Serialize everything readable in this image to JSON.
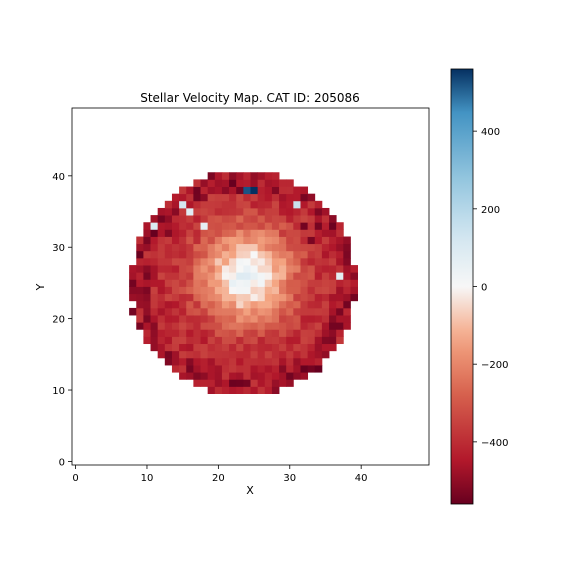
{
  "chart_data": {
    "type": "heatmap",
    "title": "Stellar Velocity Map. CAT ID: 205086",
    "xlabel": "X",
    "ylabel": "Y",
    "xlim": [
      -0.5,
      49.5
    ],
    "ylim": [
      -0.5,
      49.5
    ],
    "x_ticks": [
      0,
      10,
      20,
      30,
      40
    ],
    "y_ticks": [
      0,
      10,
      20,
      30,
      40
    ],
    "colormap": "RdBu",
    "vmin": -560,
    "vmax": 560,
    "colorbar_ticks": [
      400,
      200,
      0,
      -200,
      -400
    ],
    "colorbar_tick_labels": [
      "400",
      "200",
      "0",
      "−200",
      "−400"
    ],
    "grid": false,
    "disk": {
      "center": [
        23.5,
        25.0
      ],
      "radius": 15.7
    },
    "velocity_model": {
      "description": "approximate reading of the map: red (negative) outer disk, near-zero core around (24,26), a few dark-red and light-blue outlier pixels near the edge",
      "background": -420,
      "core": {
        "x": 24,
        "y": 26,
        "value": 40,
        "radius": 6.5
      },
      "outliers": [
        {
          "x": 25,
          "y": 38,
          "value": 560
        },
        {
          "x": 24,
          "y": 38,
          "value": 520
        },
        {
          "x": 15,
          "y": 36,
          "value": 120
        },
        {
          "x": 31,
          "y": 36,
          "value": 150
        },
        {
          "x": 11,
          "y": 33,
          "value": 100
        },
        {
          "x": 18,
          "y": 33,
          "value": 60
        },
        {
          "x": 16,
          "y": 35,
          "value": 80
        },
        {
          "x": 37,
          "y": 26,
          "value": 70
        },
        {
          "x": 22,
          "y": 39,
          "value": -560
        },
        {
          "x": 23,
          "y": 38,
          "value": -540
        },
        {
          "x": 28,
          "y": 38,
          "value": -520
        },
        {
          "x": 8,
          "y": 25,
          "value": -540
        },
        {
          "x": 8,
          "y": 21,
          "value": -540
        },
        {
          "x": 34,
          "y": 13,
          "value": -560
        },
        {
          "x": 33,
          "y": 13,
          "value": -540
        },
        {
          "x": 38,
          "y": 22,
          "value": -540
        },
        {
          "x": 39,
          "y": 23,
          "value": -540
        },
        {
          "x": 12,
          "y": 34,
          "value": -540
        },
        {
          "x": 13,
          "y": 32,
          "value": -520
        },
        {
          "x": 36,
          "y": 19,
          "value": -540
        },
        {
          "x": 37,
          "y": 19,
          "value": -540
        },
        {
          "x": 35,
          "y": 17,
          "value": -520
        },
        {
          "x": 32,
          "y": 33,
          "value": -540
        },
        {
          "x": 33,
          "y": 31,
          "value": -530
        }
      ]
    }
  }
}
